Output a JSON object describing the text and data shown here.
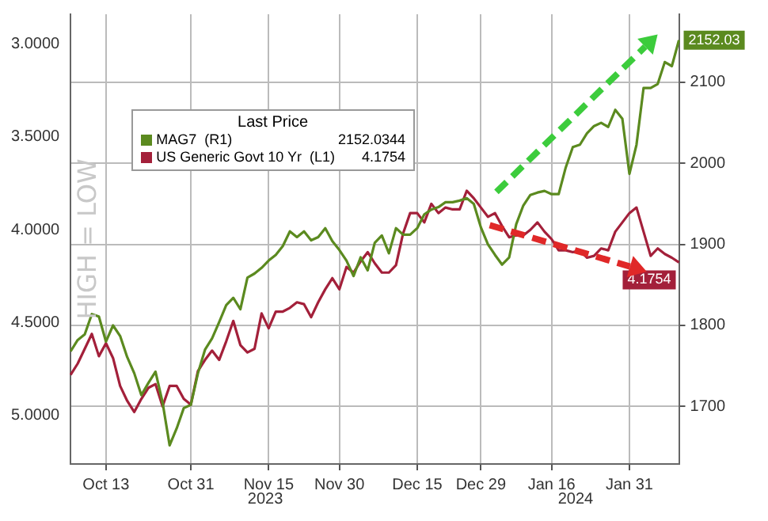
{
  "chart_data": {
    "type": "line",
    "ylabel": "HIGH = LOW",
    "legend_title": "Last Price",
    "legend": "top left",
    "grid": true,
    "marker": "none",
    "line_style": "solid",
    "categories": [
      null,
      null,
      null,
      null,
      null,
      "Oct 13",
      null,
      null,
      null,
      null,
      null,
      null,
      null,
      null,
      null,
      null,
      null,
      "Oct 31",
      null,
      null,
      null,
      null,
      null,
      null,
      null,
      null,
      null,
      null,
      "Nov 15",
      null,
      null,
      null,
      null,
      null,
      null,
      null,
      null,
      null,
      "Nov 30",
      null,
      null,
      null,
      null,
      null,
      null,
      null,
      null,
      null,
      null,
      "Dec 15",
      null,
      null,
      null,
      null,
      null,
      null,
      null,
      null,
      "Dec 29",
      null,
      null,
      null,
      null,
      null,
      null,
      null,
      null,
      null,
      "Jan 16",
      null,
      null,
      null,
      null,
      null,
      null,
      null,
      null,
      null,
      null,
      "Jan 31",
      null,
      null,
      null,
      null,
      null,
      null,
      null
    ],
    "ylim": [
      5.26,
      2.84
    ],
    "yticks": [
      {
        "value": 3,
        "label": "3.0000"
      },
      {
        "value": 3.5,
        "label": "3.5000"
      },
      {
        "value": 4,
        "label": "4.0000"
      },
      {
        "value": 4.5,
        "label": "4.5000"
      },
      {
        "value": 5,
        "label": "5.0000"
      }
    ],
    "y2lim": [
      1629,
      2184
    ],
    "y2ticks": [
      1700,
      1800,
      1900,
      2000,
      2100
    ],
    "annotations": [
      "2023",
      "2024",
      "2152.0344",
      "4.1754"
    ],
    "series": [
      {
        "name": "MAG7  (R1)",
        "color": "#5b8a1f",
        "axis": "y2",
        "values": [
          1768,
          1782,
          1789,
          1814,
          1811,
          1780,
          1800,
          1787,
          1761,
          1741,
          1714,
          1729,
          1743,
          1705,
          1652,
          1673,
          1698,
          1702,
          1741,
          1770,
          1784,
          1804,
          1825,
          1834,
          1820,
          1859,
          1864,
          1871,
          1880,
          1887,
          1898,
          1916,
          1909,
          1916,
          1905,
          1909,
          1920,
          1904,
          1893,
          1880,
          1861,
          1884,
          1868,
          1902,
          1911,
          1889,
          1920,
          1912,
          1912,
          1920,
          1937,
          1943,
          1946,
          1952,
          1952,
          1954,
          1957,
          1950,
          1921,
          1900,
          1887,
          1875,
          1884,
          1925,
          1948,
          1961,
          1964,
          1966,
          1962,
          1962,
          1995,
          2020,
          2023,
          2037,
          2046,
          2050,
          2045,
          2066,
          2055,
          1987,
          2023,
          2093,
          2093,
          2098,
          2125,
          2120,
          2152.03
        ],
        "value_labels": [
          null,
          null,
          null,
          null,
          null,
          null,
          null,
          null,
          null,
          null,
          null,
          null,
          null,
          null,
          null,
          null,
          null,
          null,
          null,
          null,
          null,
          null,
          null,
          null,
          null,
          null,
          null,
          null,
          null,
          null,
          null,
          null,
          null,
          null,
          null,
          null,
          null,
          null,
          null,
          null,
          null,
          null,
          null,
          null,
          null,
          null,
          null,
          null,
          null,
          null,
          null,
          null,
          null,
          null,
          null,
          null,
          null,
          null,
          null,
          null,
          null,
          null,
          null,
          null,
          null,
          null,
          null,
          null,
          null,
          null,
          null,
          null,
          null,
          null,
          null,
          null,
          null,
          null,
          null,
          null,
          null,
          null,
          null,
          null,
          null,
          null,
          "2152.03"
        ]
      },
      {
        "name": "US Generic Govt 10 Yr  (L1)",
        "color": "#a3203a",
        "axis": "y",
        "values": [
          4.78,
          4.72,
          4.64,
          4.56,
          4.68,
          4.61,
          4.69,
          4.84,
          4.92,
          4.98,
          4.91,
          4.85,
          4.83,
          4.95,
          4.84,
          4.84,
          4.91,
          4.94,
          4.76,
          4.7,
          4.65,
          4.7,
          4.6,
          4.49,
          4.62,
          4.66,
          4.64,
          4.45,
          4.53,
          4.44,
          4.44,
          4.42,
          4.39,
          4.4,
          4.47,
          4.39,
          4.32,
          4.26,
          4.32,
          4.2,
          4.23,
          4.17,
          4.12,
          4.18,
          4.23,
          4.23,
          4.19,
          4.02,
          3.91,
          3.91,
          3.96,
          3.86,
          3.91,
          3.88,
          3.89,
          3.89,
          3.79,
          3.83,
          3.88,
          3.93,
          3.91,
          3.98,
          4.04,
          4.03,
          4.03,
          4.0,
          3.96,
          4.01,
          4.05,
          4.11,
          4.11,
          4.12,
          4.11,
          4.15,
          4.14,
          4.1,
          4.11,
          4.01,
          3.96,
          3.91,
          3.88,
          4.01,
          4.14,
          4.1,
          4.13,
          4.15,
          4.1754
        ],
        "value_labels": [
          null,
          null,
          null,
          null,
          null,
          null,
          null,
          null,
          null,
          null,
          null,
          null,
          null,
          null,
          null,
          null,
          null,
          null,
          null,
          null,
          null,
          null,
          null,
          null,
          null,
          null,
          null,
          null,
          null,
          null,
          null,
          null,
          null,
          null,
          null,
          null,
          null,
          null,
          null,
          null,
          null,
          null,
          null,
          null,
          null,
          null,
          null,
          null,
          null,
          null,
          null,
          null,
          null,
          null,
          null,
          null,
          null,
          null,
          null,
          null,
          null,
          null,
          null,
          null,
          null,
          null,
          null,
          null,
          null,
          null,
          null,
          null,
          null,
          null,
          null,
          null,
          null,
          null,
          null,
          null,
          null,
          null,
          null,
          null,
          null,
          null,
          "4.1754"
        ]
      }
    ]
  }
}
